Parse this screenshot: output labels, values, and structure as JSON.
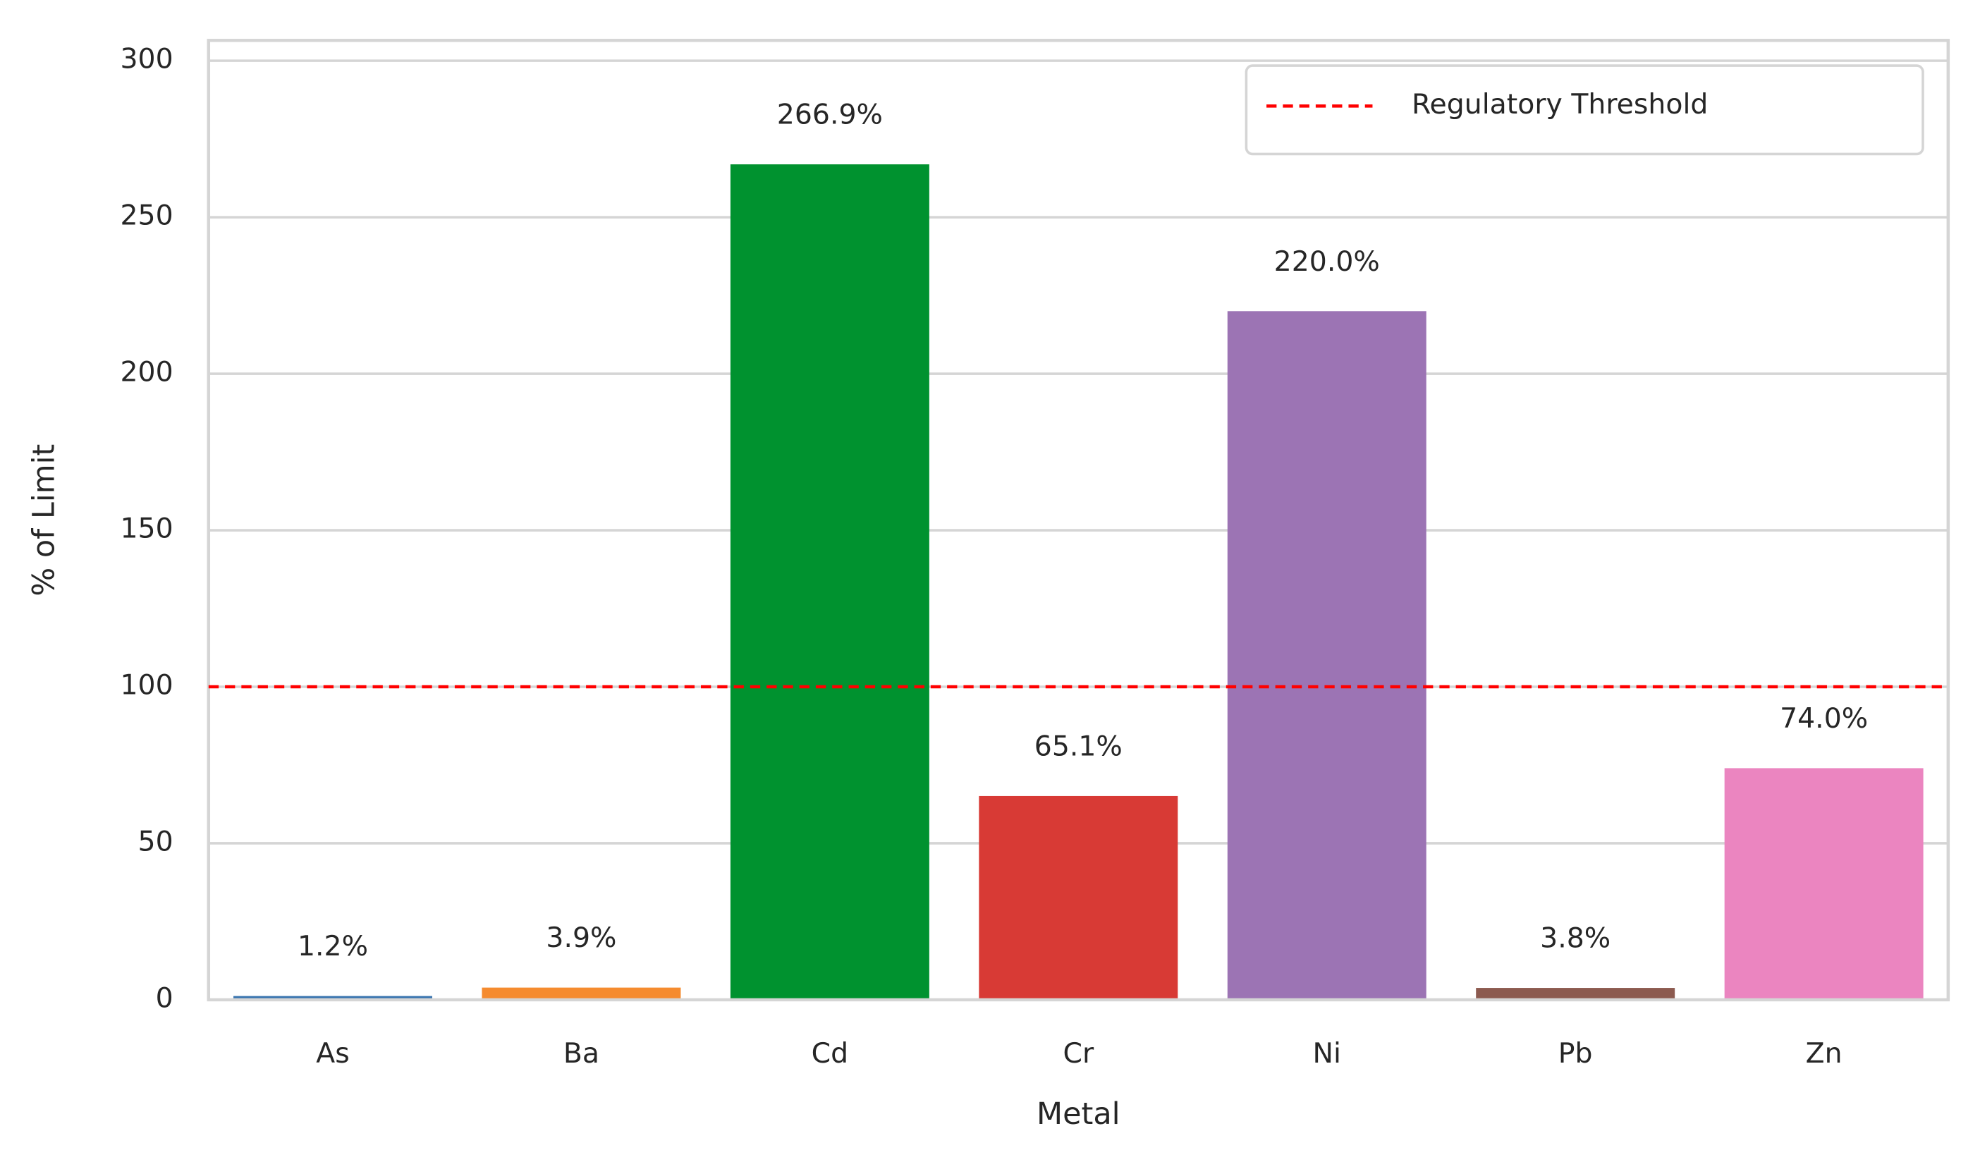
{
  "chart_data": {
    "type": "bar",
    "x_label": "Metal",
    "y_label": "% of Limit",
    "categories": [
      "As",
      "Ba",
      "Cd",
      "Cr",
      "Ni",
      "Pb",
      "Zn"
    ],
    "values": [
      1.2,
      3.9,
      266.9,
      65.1,
      220.0,
      3.8,
      74.0
    ],
    "value_labels": [
      "1.2%",
      "3.9%",
      "266.9%",
      "65.1%",
      "220.0%",
      "3.8%",
      "74.0%"
    ],
    "colors": [
      "#3a75af",
      "#f58b2f",
      "#00922f",
      "#d83a35",
      "#9c74b4",
      "#8c5a4f",
      "#eb85c0"
    ],
    "ylim": [
      0,
      306.5
    ],
    "yticks": [
      0,
      50,
      100,
      150,
      200,
      250,
      300
    ],
    "grid": true,
    "threshold": {
      "value": 100,
      "label": "Regulatory Threshold",
      "color": "#ff0000"
    },
    "legend": "upper right"
  }
}
